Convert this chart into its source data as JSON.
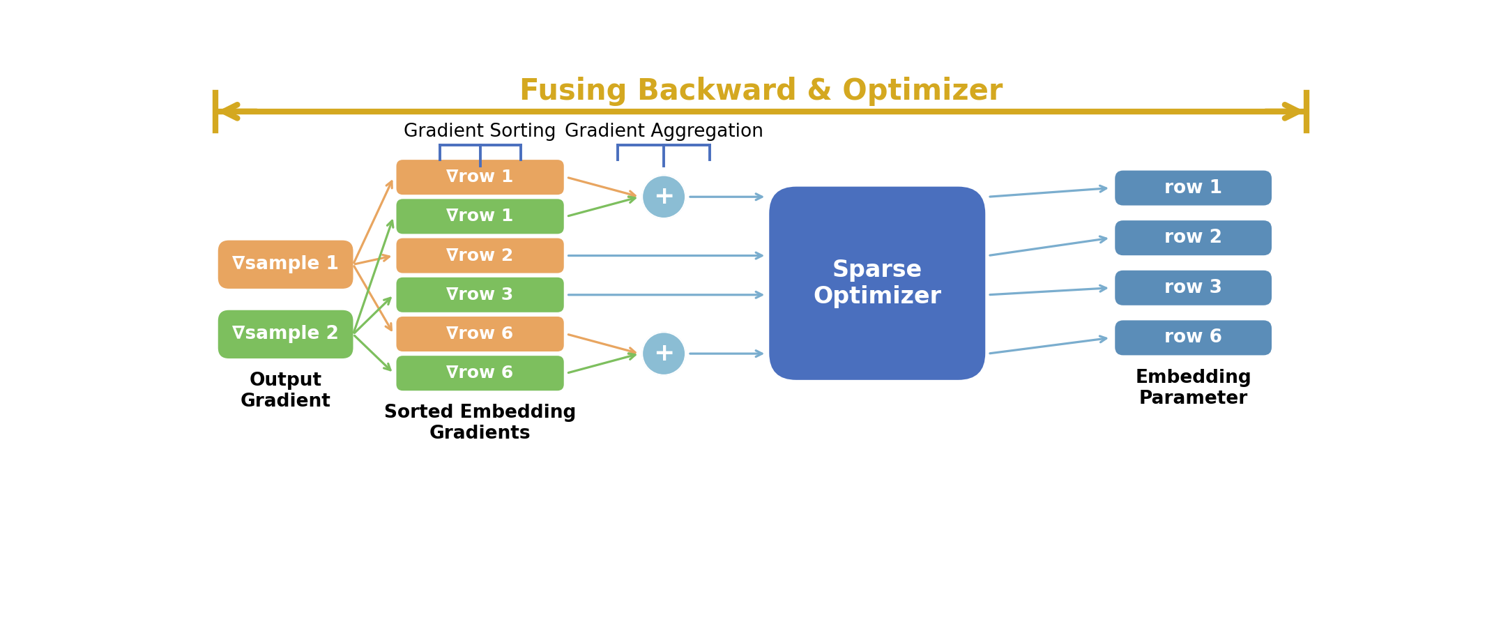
{
  "title": "Fusing Backward & Optimizer",
  "title_color": "#D4A820",
  "bg_color": "#ffffff",
  "orange_color": "#E8A560",
  "green_color": "#7DBF5E",
  "blue_box_color": "#4A6FBE",
  "blue_row_color": "#5B8DB8",
  "plus_circle_color": "#8BBDD4",
  "arrow_color_orange": "#E8A560",
  "arrow_color_green": "#7DBF5E",
  "arrow_color_blue": "#7AADCE",
  "bracket_color": "#4A6FBE",
  "gradient_label": "Output\nGradient",
  "sorted_label": "Sorted Embedding\nGradients",
  "optimizer_label": "Sparse\nOptimizer",
  "embedding_label": "Embedding\nParameter",
  "gradient_sorting_label": "Gradient Sorting",
  "gradient_aggregation_label": "Gradient Aggregation",
  "sample1_label": "∇sample 1",
  "sample2_label": "∇sample 2",
  "sorted_rows": [
    "∇row 1",
    "∇row 1",
    "∇row 2",
    "∇row 3",
    "∇row 6",
    "∇row 6"
  ],
  "sorted_row_colors": [
    "#E8A560",
    "#7DBF5E",
    "#E8A560",
    "#7DBF5E",
    "#E8A560",
    "#7DBF5E"
  ],
  "output_rows": [
    "row 1",
    "row 2",
    "row 3",
    "row 6"
  ],
  "figw": 21.3,
  "figh": 9.02,
  "dpi": 100
}
